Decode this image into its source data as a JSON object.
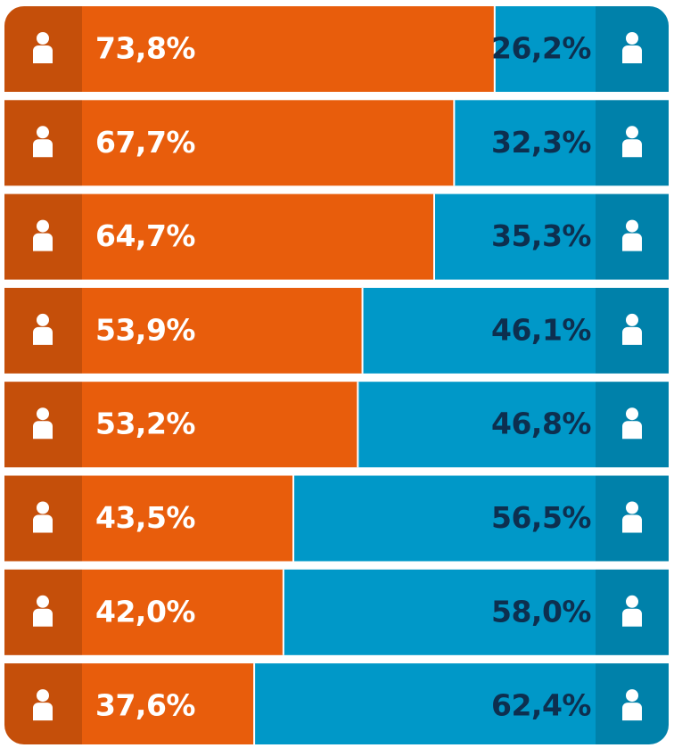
{
  "chart_data": {
    "type": "bar",
    "orientation": "horizontal",
    "stacked": true,
    "categories": [
      null,
      null,
      null,
      null,
      null,
      null,
      null,
      null
    ],
    "xlim": [
      0,
      100
    ],
    "series": [
      {
        "color": "#e85d0c",
        "label_color": "#ffffff",
        "values": [
          73.8,
          67.7,
          64.7,
          53.9,
          53.2,
          43.5,
          42.0,
          37.6
        ],
        "value_labels": [
          "73,8%",
          "67,7%",
          "64,7%",
          "53,9%",
          "53,2%",
          "43,5%",
          "42,0%",
          "37,6%"
        ]
      },
      {
        "color": "#0098c8",
        "label_color": "#0d2f4f",
        "values": [
          26.2,
          32.3,
          35.3,
          46.1,
          46.8,
          56.5,
          58.0,
          62.4
        ],
        "value_labels": [
          "26,2%",
          "32,3%",
          "35,3%",
          "46,1%",
          "46,8%",
          "56,5%",
          "58,0%",
          "62,4%"
        ]
      }
    ]
  }
}
